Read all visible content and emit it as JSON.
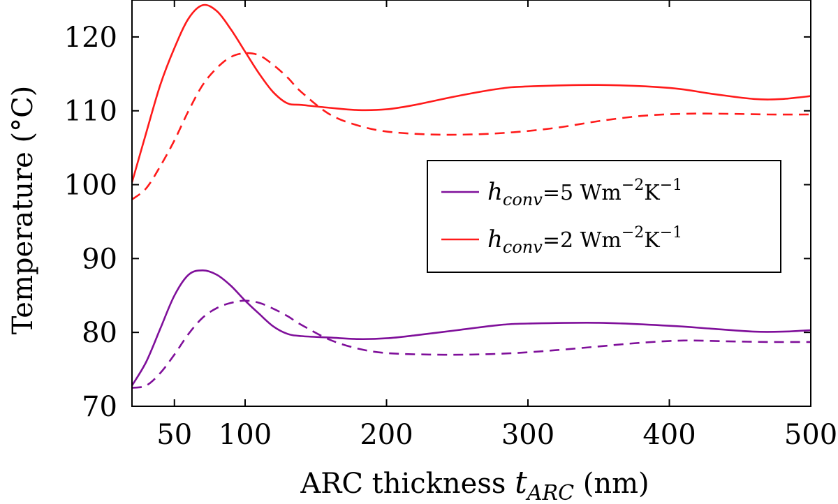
{
  "chart_data": {
    "type": "line",
    "xlabel": "ARC thickness ",
    "xlabel_symbol": "t",
    "xlabel_subscript": "ARC",
    "xlabel_unit": " (nm)",
    "ylabel": "Temperature (°C)",
    "xlim": [
      20,
      500
    ],
    "ylim": [
      70,
      125
    ],
    "x_ticks": [
      50,
      100,
      200,
      300,
      400,
      500
    ],
    "y_ticks": [
      70,
      80,
      90,
      100,
      110,
      120
    ],
    "grid": false,
    "legend_position": "center-right",
    "legend": [
      {
        "symbol": "h",
        "subscript": "conv",
        "text": "=5 Wm",
        "exp1": "−2",
        "unit2": "K",
        "exp2": "−1",
        "color": "#7f0f9a"
      },
      {
        "symbol": "h",
        "subscript": "conv",
        "text": "=2 Wm",
        "exp1": "−2",
        "unit2": "K",
        "exp2": "−1",
        "color": "#ff1a1a"
      }
    ],
    "series": [
      {
        "color": "#ff1a1a",
        "dash": false,
        "x": [
          20,
          30,
          40,
          50,
          60,
          70,
          80,
          90,
          100,
          110,
          120,
          130,
          140,
          160,
          180,
          200,
          220,
          250,
          280,
          300,
          350,
          400,
          430,
          460,
          480,
          500
        ],
        "y": [
          100.3,
          107,
          113.5,
          118.5,
          122.5,
          124.3,
          123.5,
          121,
          118,
          115,
          112.5,
          111,
          110.8,
          110.4,
          110.1,
          110.2,
          110.8,
          112,
          113,
          113.3,
          113.5,
          113.1,
          112.3,
          111.6,
          111.6,
          112
        ]
      },
      {
        "color": "#ff1a1a",
        "dash": true,
        "x": [
          20,
          30,
          40,
          50,
          60,
          70,
          80,
          90,
          100,
          110,
          120,
          130,
          140,
          160,
          180,
          200,
          230,
          260,
          290,
          320,
          350,
          380,
          410,
          440,
          470,
          500
        ],
        "y": [
          98,
          99.5,
          102.5,
          106,
          110,
          113.5,
          115.8,
          117.3,
          117.8,
          117.5,
          116.2,
          114.5,
          112.5,
          109.5,
          108,
          107.2,
          106.8,
          106.8,
          107.1,
          107.7,
          108.6,
          109.3,
          109.6,
          109.6,
          109.5,
          109.5
        ]
      },
      {
        "color": "#7f0f9a",
        "dash": false,
        "x": [
          20,
          30,
          40,
          50,
          60,
          70,
          80,
          90,
          100,
          110,
          120,
          130,
          140,
          160,
          180,
          200,
          220,
          250,
          280,
          300,
          350,
          400,
          430,
          460,
          480,
          500
        ],
        "y": [
          72.8,
          76,
          80.5,
          85,
          87.8,
          88.4,
          87.8,
          86.3,
          84.3,
          82.5,
          80.8,
          79.8,
          79.5,
          79.3,
          79.1,
          79.2,
          79.6,
          80.3,
          81,
          81.2,
          81.3,
          80.9,
          80.5,
          80.1,
          80.1,
          80.3
        ]
      },
      {
        "color": "#7f0f9a",
        "dash": true,
        "x": [
          20,
          30,
          40,
          50,
          60,
          70,
          80,
          90,
          100,
          110,
          120,
          130,
          140,
          160,
          180,
          200,
          230,
          260,
          290,
          320,
          350,
          380,
          410,
          440,
          470,
          500
        ],
        "y": [
          72.5,
          72.8,
          74.5,
          77,
          79.8,
          82,
          83.3,
          84,
          84.3,
          84,
          83.2,
          82.2,
          81,
          79,
          77.8,
          77.2,
          77,
          77,
          77.2,
          77.6,
          78.1,
          78.6,
          78.9,
          78.8,
          78.7,
          78.7
        ]
      }
    ]
  }
}
